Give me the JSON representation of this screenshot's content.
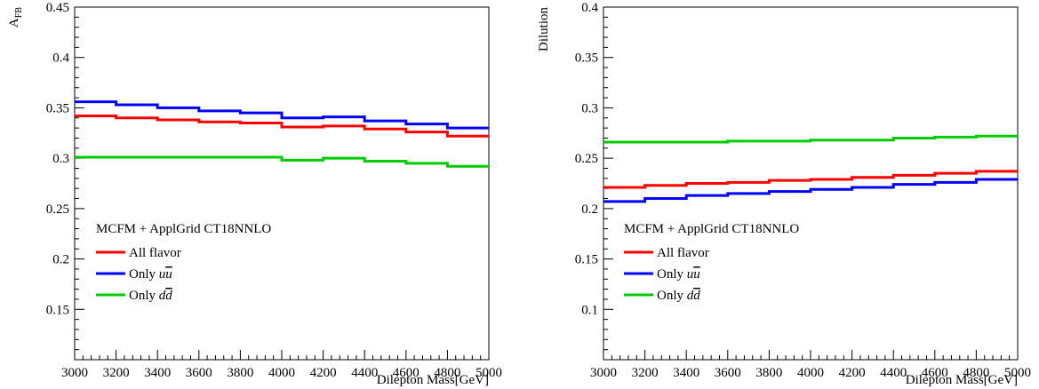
{
  "chart_data": [
    {
      "type": "line",
      "step": true,
      "ylabel_main": "A",
      "ylabel_sub": "FB",
      "xlabel": "Dilepton Mass[GeV]",
      "xlim": [
        3000,
        5000
      ],
      "ylim": [
        0.1,
        0.45
      ],
      "xticks": [
        3000,
        3200,
        3400,
        3600,
        3800,
        4000,
        4200,
        4400,
        4600,
        4800,
        5000
      ],
      "xtick_labels": [
        "3000",
        "3200",
        "3400",
        "3600",
        "3800",
        "4000",
        "4200",
        "4400",
        "4600",
        "4800",
        "5000"
      ],
      "yticks": [
        0.15,
        0.2,
        0.25,
        0.3,
        0.35,
        0.4,
        0.45
      ],
      "ytick_labels": [
        "0.15",
        "0.2",
        "0.25",
        "0.3",
        "0.35",
        "0.4",
        "0.45"
      ],
      "bin_edges": [
        3000,
        3200,
        3400,
        3600,
        3800,
        4000,
        4200,
        4400,
        4600,
        4800,
        5000
      ],
      "legend_header": "MCFM + ApplGrid CT18NNLO",
      "series": [
        {
          "name": "All flavor",
          "label_prefix": "Only ",
          "label_plain": "All flavor",
          "label_italic": "",
          "color": "#ff0000",
          "values": [
            0.342,
            0.34,
            0.338,
            0.336,
            0.335,
            0.331,
            0.332,
            0.329,
            0.326,
            0.322
          ]
        },
        {
          "name": "Only uu̅",
          "label_plain": "Only ",
          "label_italic": "u",
          "label_italic_bar": "u",
          "color": "#0000ff",
          "values": [
            0.356,
            0.353,
            0.35,
            0.347,
            0.345,
            0.34,
            0.341,
            0.337,
            0.334,
            0.33
          ]
        },
        {
          "name": "Only dd̅",
          "label_plain": "Only ",
          "label_italic": "d",
          "label_italic_bar": "d",
          "color": "#00cc00",
          "values": [
            0.301,
            0.301,
            0.301,
            0.301,
            0.301,
            0.298,
            0.3,
            0.297,
            0.295,
            0.292
          ]
        }
      ]
    },
    {
      "type": "line",
      "step": true,
      "ylabel_main": "Dilution",
      "ylabel_sub": "",
      "xlabel": "Dilepton Mass[GeV]",
      "xlim": [
        3000,
        5000
      ],
      "ylim": [
        0.05,
        0.4
      ],
      "xticks": [
        3000,
        3200,
        3400,
        3600,
        3800,
        4000,
        4200,
        4400,
        4600,
        4800,
        5000
      ],
      "xtick_labels": [
        "3000",
        "3200",
        "3400",
        "3600",
        "3800",
        "4000",
        "4200",
        "4400",
        "4600",
        "4800",
        "5000"
      ],
      "yticks": [
        0.1,
        0.15,
        0.2,
        0.25,
        0.3,
        0.35,
        0.4
      ],
      "ytick_labels": [
        "0.1",
        "0.15",
        "0.2",
        "0.25",
        "0.3",
        "0.35",
        "0.4"
      ],
      "bin_edges": [
        3000,
        3200,
        3400,
        3600,
        3800,
        4000,
        4200,
        4400,
        4600,
        4800,
        5000
      ],
      "legend_header": "MCFM + ApplGrid CT18NNLO",
      "series": [
        {
          "name": "All flavor",
          "label_plain": "All flavor",
          "label_italic": "",
          "color": "#ff0000",
          "values": [
            0.221,
            0.223,
            0.225,
            0.226,
            0.228,
            0.229,
            0.231,
            0.233,
            0.235,
            0.237
          ]
        },
        {
          "name": "Only uu̅",
          "label_plain": "Only ",
          "label_italic": "u",
          "label_italic_bar": "u",
          "color": "#0000ff",
          "values": [
            0.207,
            0.21,
            0.213,
            0.215,
            0.217,
            0.219,
            0.221,
            0.224,
            0.226,
            0.229
          ]
        },
        {
          "name": "Only dd̅",
          "label_plain": "Only ",
          "label_italic": "d",
          "label_italic_bar": "d",
          "color": "#00cc00",
          "values": [
            0.266,
            0.266,
            0.266,
            0.267,
            0.267,
            0.268,
            0.268,
            0.27,
            0.271,
            0.272
          ]
        }
      ]
    }
  ]
}
